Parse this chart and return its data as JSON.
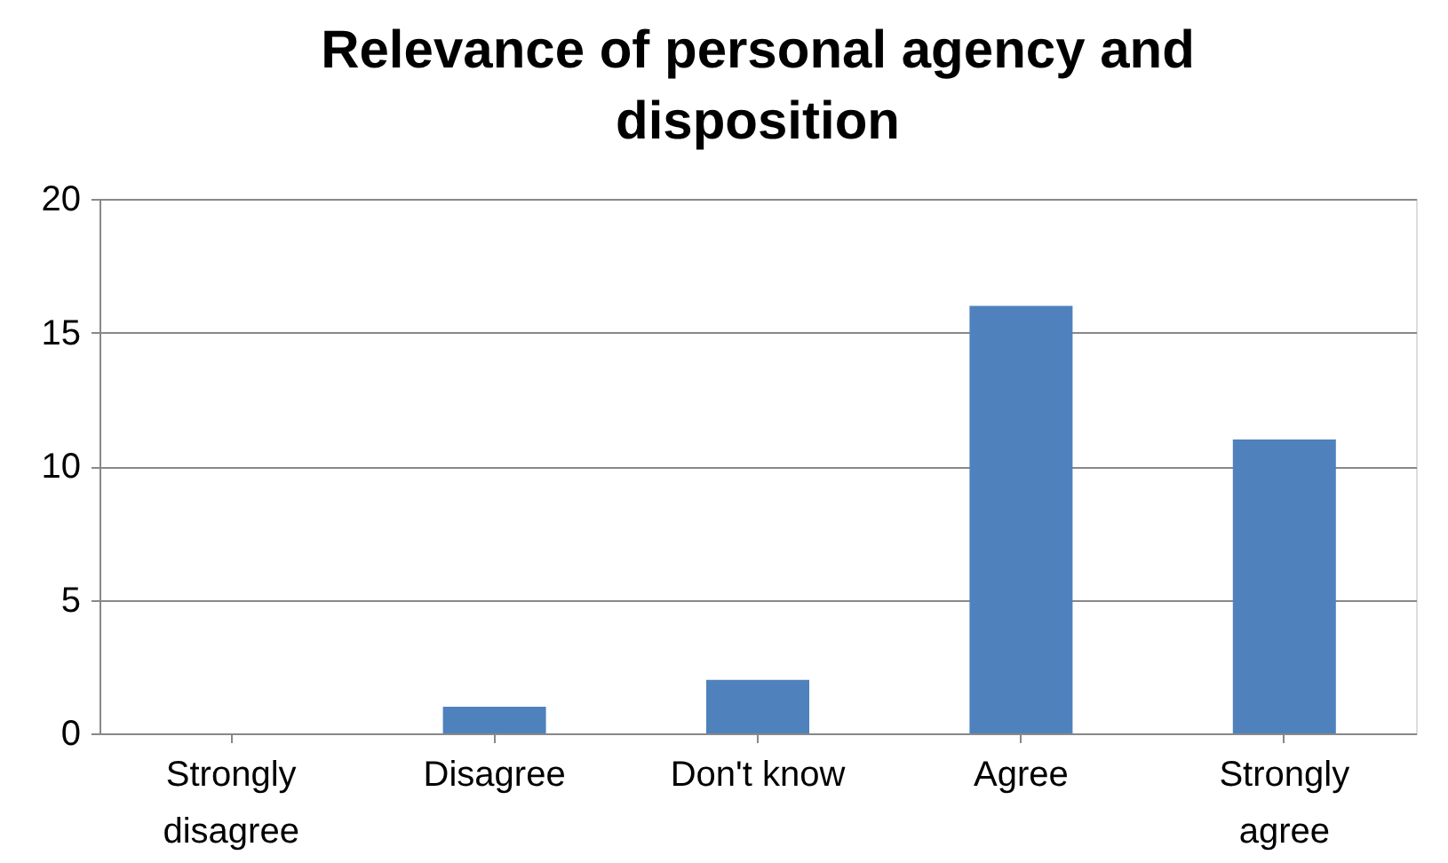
{
  "chart_data": {
    "type": "bar",
    "title": "Relevance of personal agency and disposition",
    "categories": [
      "Strongly disagree",
      "Disagree",
      "Don't know",
      "Agree",
      "Strongly agree"
    ],
    "values": [
      0,
      1,
      2,
      16,
      11
    ],
    "color": "#4f81bd",
    "ylim": [
      0,
      20
    ],
    "yticks": [
      0,
      5,
      10,
      15,
      20
    ],
    "grid": "y"
  }
}
